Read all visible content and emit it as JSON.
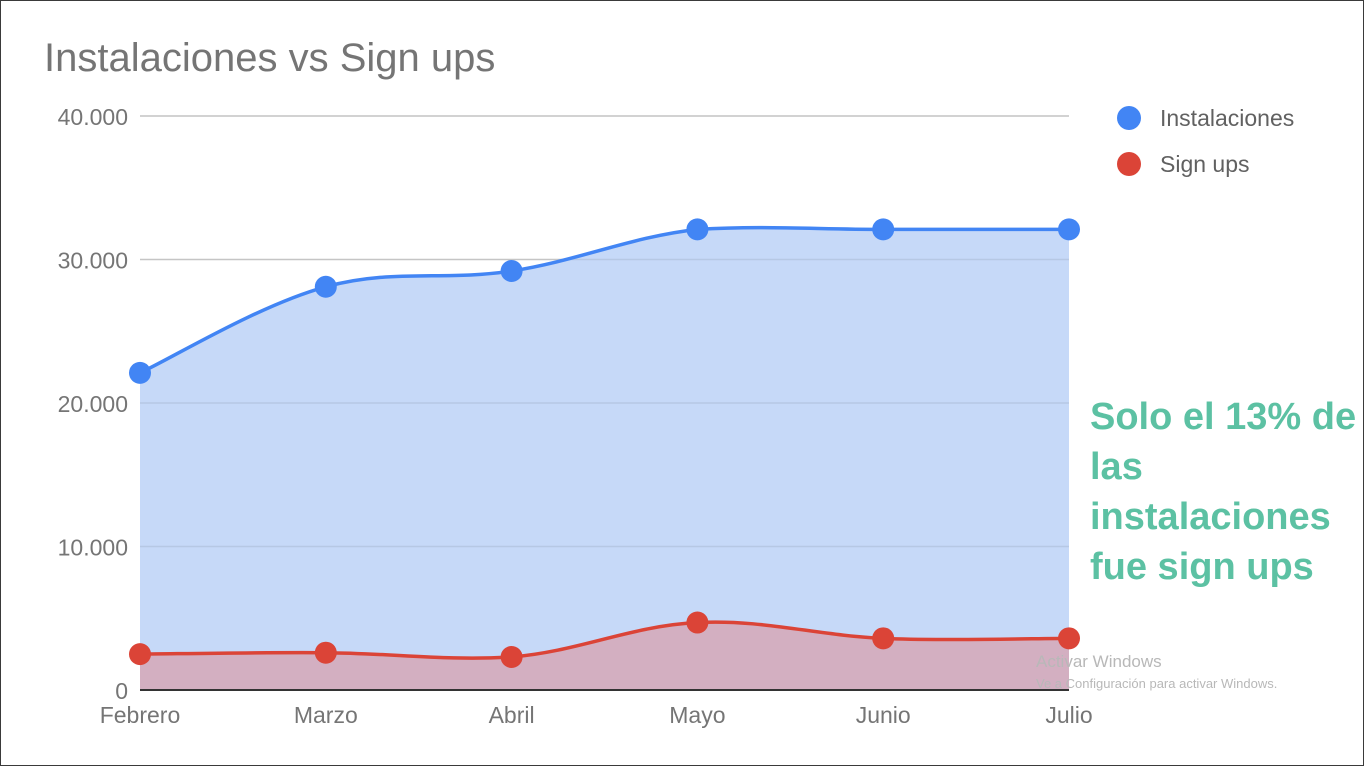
{
  "chart_data": {
    "type": "area",
    "title": "Instalaciones vs Sign ups",
    "categories": [
      "Febrero",
      "Marzo",
      "Abril",
      "Mayo",
      "Junio",
      "Julio"
    ],
    "series": [
      {
        "name": "Instalaciones",
        "color": "#4285f4",
        "fill": "#c6d9f8",
        "values": [
          22100,
          28100,
          29200,
          32100,
          32100,
          32100
        ]
      },
      {
        "name": "Sign ups",
        "color": "#db4437",
        "fill": "#d3afc1",
        "values": [
          2500,
          2600,
          2300,
          4700,
          3600,
          3600
        ]
      }
    ],
    "y_ticks": [
      0,
      10000,
      20000,
      30000,
      40000
    ],
    "y_tick_labels": [
      "0",
      "10.000",
      "20.000",
      "30.000",
      "40.000"
    ],
    "ylim": [
      0,
      40000
    ],
    "grid": true,
    "legend": "top-right",
    "annotation": "Solo el 13% de las instalaciones fue sign ups"
  },
  "watermark": {
    "line1": "Activar Windows",
    "line2": "Ve a Configuración para activar Windows."
  }
}
